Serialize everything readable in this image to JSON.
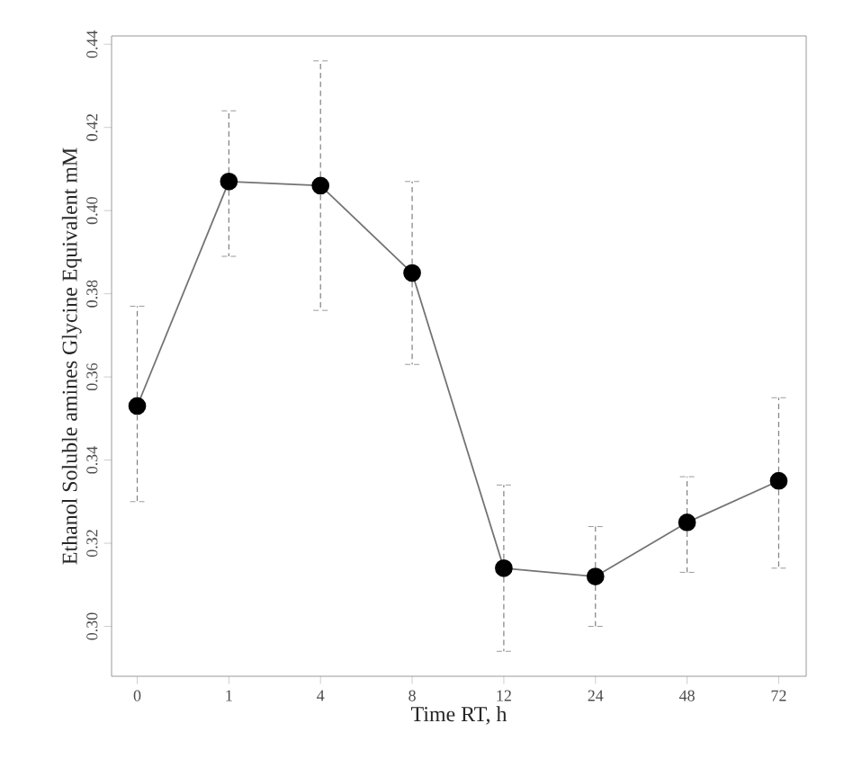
{
  "chart_data": {
    "type": "line",
    "xlabel": "Time RT, h",
    "ylabel": "Ethanol Soluble amines Glycine Equivalent mM",
    "categories": [
      "0",
      "1",
      "4",
      "8",
      "12",
      "24",
      "48",
      "72"
    ],
    "series": [
      {
        "color": "#000000",
        "values": [
          0.353,
          0.407,
          0.406,
          0.385,
          0.314,
          0.312,
          0.325,
          0.335
        ],
        "errors": [
          [
            0.33,
            0.377
          ],
          [
            0.389,
            0.424
          ],
          [
            0.376,
            0.436
          ],
          [
            0.363,
            0.407
          ],
          [
            0.294,
            0.334
          ],
          [
            0.3,
            0.324
          ],
          [
            0.313,
            0.336
          ],
          [
            0.314,
            0.355
          ]
        ]
      }
    ],
    "ylim": [
      0.288,
      0.442
    ],
    "yticks": [
      {
        "value": 0.3,
        "label": "0.30"
      },
      0.32,
      0.34,
      0.36,
      0.38,
      {
        "value": 0.4,
        "label": "0.40"
      },
      0.42,
      0.44
    ],
    "marker": "circle",
    "line_style": "solid"
  }
}
